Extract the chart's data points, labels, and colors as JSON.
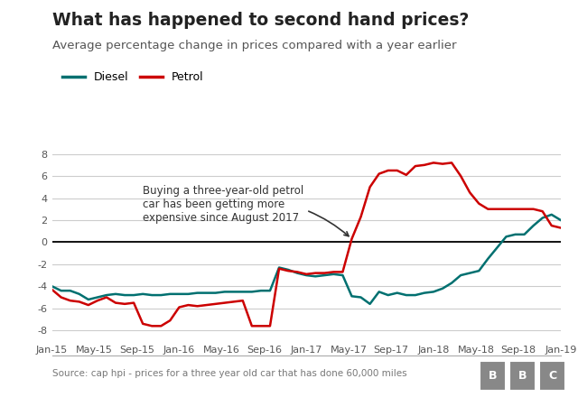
{
  "title": "What has happened to second hand prices?",
  "subtitle": "Average percentage change in prices compared with a year earlier",
  "source": "Source: cap hpi - prices for a three year old car that has done 60,000 miles",
  "diesel_color": "#007070",
  "petrol_color": "#cc0000",
  "ylim": [
    -9,
    9
  ],
  "yticks": [
    -8,
    -6,
    -4,
    -2,
    0,
    2,
    4,
    6,
    8
  ],
  "annotation_text": "Buying a three-year-old petrol\ncar has been getting more\nexpensive since August 2017",
  "x_labels": [
    "Jan-15",
    "May-15",
    "Sep-15",
    "Jan-16",
    "May-16",
    "Sep-16",
    "Jan-17",
    "May-17",
    "Sep-17",
    "Jan-18",
    "May-18",
    "Sep-18",
    "Jan-19"
  ],
  "diesel_values": [
    -4.0,
    -4.4,
    -4.4,
    -4.7,
    -5.2,
    -5.0,
    -4.8,
    -4.7,
    -4.8,
    -4.8,
    -4.7,
    -4.8,
    -4.8,
    -4.7,
    -4.7,
    -4.7,
    -4.6,
    -4.6,
    -4.6,
    -4.5,
    -4.5,
    -4.5,
    -4.5,
    -4.4,
    -4.4,
    -2.3,
    -2.5,
    -2.8,
    -3.0,
    -3.1,
    -3.0,
    -2.9,
    -3.0,
    -4.9,
    -5.0,
    -5.6,
    -4.5,
    -4.8,
    -4.6,
    -4.8,
    -4.8,
    -4.6,
    -4.5,
    -4.2,
    -3.7,
    -3.0,
    -2.8,
    -2.6,
    -1.5,
    -0.5,
    0.5,
    0.7,
    0.7,
    1.5,
    2.2,
    2.5,
    2.0
  ],
  "petrol_values": [
    -4.3,
    -5.0,
    -5.3,
    -5.4,
    -5.7,
    -5.3,
    -5.0,
    -5.5,
    -5.6,
    -5.5,
    -7.4,
    -7.6,
    -7.6,
    -7.1,
    -5.9,
    -5.7,
    -5.8,
    -5.7,
    -5.6,
    -5.5,
    -5.4,
    -5.3,
    -7.6,
    -7.6,
    -7.6,
    -2.4,
    -2.6,
    -2.7,
    -2.9,
    -2.8,
    -2.8,
    -2.7,
    -2.7,
    0.3,
    2.3,
    5.0,
    6.2,
    6.5,
    6.5,
    6.1,
    6.9,
    7.0,
    7.2,
    7.1,
    7.2,
    6.0,
    4.5,
    3.5,
    3.0,
    3.0,
    3.0,
    3.0,
    3.0,
    3.0,
    2.8,
    1.5,
    1.3
  ],
  "n_points": 57
}
